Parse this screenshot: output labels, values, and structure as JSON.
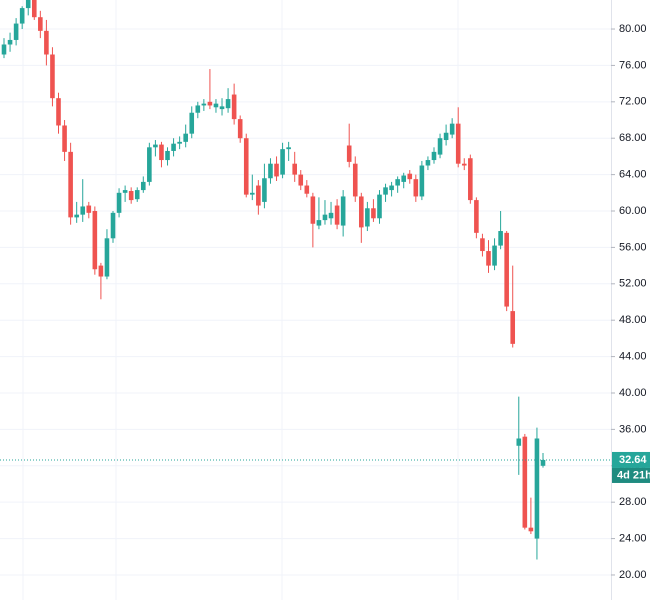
{
  "chart_data": {
    "type": "candlestick",
    "open": [
      77.2,
      78.3,
      78.8,
      80.6,
      82.3,
      83.5,
      81.3,
      79.8,
      77.2,
      72.4,
      69.4,
      66.5,
      59.3,
      59.6,
      60.6,
      60,
      54,
      52.8,
      57,
      59.8,
      62,
      62.2,
      61.3,
      62.3,
      63.2,
      67,
      67.3,
      65.6,
      66.6,
      67.4,
      67.6,
      68.5,
      70.8,
      71.6,
      72,
      71.4,
      71.2,
      71.3,
      72.8,
      70.1,
      68,
      61.8,
      62.8,
      61,
      63.6,
      65.2,
      64,
      66.8,
      65.2,
      64,
      62.8,
      61.6,
      58.4,
      59,
      59.2,
      60.6,
      58.4,
      67.2,
      65.2,
      61.6,
      58.3,
      60.3,
      59.2,
      61.8,
      62.3,
      62.8,
      63.2,
      64.1,
      63.5,
      61.6,
      65,
      65.6,
      66.2,
      67.8,
      68.4,
      69.6,
      65.2,
      65.8,
      61.2,
      57,
      55.6,
      54,
      56.2,
      57.6,
      49,
      34.2,
      35.2,
      25.2,
      24,
      32
    ],
    "high": [
      79,
      79.6,
      81.2,
      82.5,
      84,
      84,
      82,
      81,
      78,
      73,
      70,
      67.5,
      61,
      63.5,
      61,
      60.5,
      54.3,
      58,
      60,
      62.5,
      62.8,
      62.6,
      62.6,
      63.8,
      67.5,
      67.8,
      67.6,
      67,
      68,
      68.2,
      69.5,
      71.5,
      72,
      72.3,
      75.6,
      72.3,
      72.4,
      73.5,
      74,
      70.5,
      68.5,
      64,
      63.4,
      65.2,
      65.8,
      66,
      67.5,
      67.6,
      66.5,
      64.5,
      63.4,
      62,
      61.5,
      61.2,
      61,
      61.3,
      62.3,
      69.6,
      66,
      62,
      61,
      61.3,
      62.3,
      63,
      63.2,
      63.8,
      64.2,
      64.5,
      64,
      65.5,
      66,
      67,
      68.5,
      69.5,
      70.2,
      71.4,
      65.8,
      66.2,
      61.5,
      57.5,
      56.8,
      57,
      60,
      57.8,
      54,
      39.6,
      35.5,
      28.5,
      36.2,
      33.4
    ],
    "low": [
      76.8,
      77.5,
      78.2,
      80,
      81.5,
      81,
      79,
      76,
      71.5,
      68.5,
      65.5,
      58.5,
      58.7,
      58.8,
      59.2,
      53,
      50.3,
      52.5,
      56.5,
      59.3,
      61,
      60.8,
      61,
      62,
      62.8,
      66,
      64.8,
      65,
      66,
      66.8,
      67,
      68,
      70.2,
      71,
      71.2,
      70.8,
      70.5,
      70.8,
      69.5,
      67.5,
      61.5,
      61.2,
      59.6,
      60.3,
      63,
      63.3,
      63.6,
      65.5,
      63.2,
      62.3,
      61.5,
      56,
      58,
      58.5,
      58.5,
      58,
      57.2,
      64.8,
      61,
      56.5,
      57.8,
      58.8,
      58.6,
      61,
      61.6,
      62,
      62.5,
      63,
      61,
      61.2,
      64.5,
      65.2,
      65.8,
      67.2,
      68,
      64.8,
      64.5,
      60.8,
      57,
      55,
      53.2,
      53.5,
      55.8,
      49,
      45,
      31,
      25,
      24.5,
      21.7,
      31.8
    ],
    "close": [
      78.3,
      78.8,
      80.6,
      82.3,
      83.6,
      81.3,
      79.8,
      77.2,
      72.4,
      69.4,
      66.5,
      59.3,
      59.6,
      60.5,
      59.8,
      53.6,
      52.8,
      57,
      59.8,
      62,
      62.3,
      61.2,
      62.3,
      63.2,
      67,
      67.3,
      65.6,
      66.6,
      67.4,
      67.6,
      68.5,
      70.8,
      71.6,
      71.8,
      71.6,
      71.8,
      71.5,
      72.3,
      70.1,
      68,
      61.8,
      62,
      60.6,
      63.6,
      65.2,
      63.8,
      66.8,
      67,
      64,
      62.8,
      61.9,
      58.6,
      59,
      59.6,
      59.8,
      58.5,
      61.6,
      65.4,
      61.6,
      58.2,
      60.3,
      59.2,
      61.8,
      62.6,
      62.8,
      63.5,
      63.9,
      63.5,
      61.6,
      65,
      65.6,
      66.5,
      68,
      68.6,
      69.6,
      65.2,
      65,
      61.2,
      57.6,
      55.6,
      54,
      56.2,
      57.8,
      49.5,
      45.4,
      35,
      25.2,
      24.8,
      35,
      32.64
    ],
    "up_color": "#26a69a",
    "down_color": "#ef5350",
    "ylim": [
      17.25,
      83.19
    ],
    "yticks": [
      {
        "value": 20,
        "label": "20.00"
      },
      {
        "value": 24,
        "label": "24.00"
      },
      {
        "value": 28,
        "label": "28.00"
      },
      {
        "value": 32,
        "label": "32.00"
      },
      {
        "value": 36,
        "label": "36.00"
      },
      {
        "value": 40,
        "label": "40.00"
      },
      {
        "value": 44,
        "label": "44.00"
      },
      {
        "value": 48,
        "label": "48.00"
      },
      {
        "value": 52,
        "label": "52.00"
      },
      {
        "value": 56,
        "label": "56.00"
      },
      {
        "value": 60,
        "label": "60.00"
      },
      {
        "value": 64,
        "label": "64.00"
      },
      {
        "value": 68,
        "label": "68.00"
      },
      {
        "value": 72,
        "label": "72.00"
      },
      {
        "value": 76,
        "label": "76.00"
      },
      {
        "value": 80,
        "label": "80.00"
      }
    ],
    "grid": true,
    "last_price": 32.64,
    "countdown": "4d 21h",
    "last_price_color": "#26a69a"
  }
}
